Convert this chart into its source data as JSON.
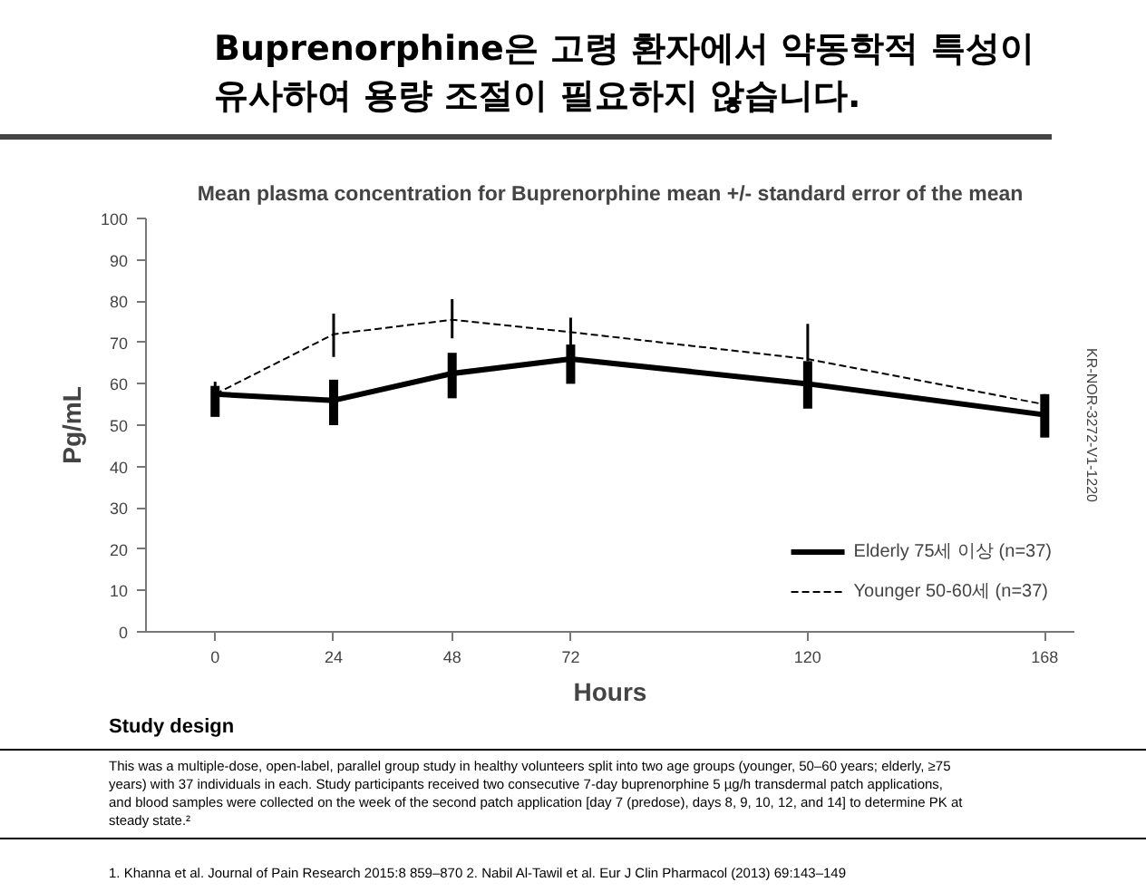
{
  "chart_data": {
    "type": "line",
    "title": "Buprenorphine은 고령 환자에서 약동학적 특성이\n유사하여 용량 조절이 필요하지 않습니다.",
    "subtitle": "Mean plasma concentration for Buprenorphine mean +/- standard error of the mean",
    "xlabel": "Hours",
    "ylabel": "Pg/mL",
    "x": [
      0,
      24,
      48,
      72,
      120,
      168
    ],
    "series": [
      {
        "name": "Elderly 75세 이상 (n=37)",
        "color": "#000000",
        "line_style": "solid",
        "values": [
          57.5,
          56,
          62.5,
          66,
          60,
          52.5
        ],
        "errors": [
          [
            52,
            59.5
          ],
          [
            50,
            61
          ],
          [
            56.5,
            67.5
          ],
          [
            60,
            69.5
          ],
          [
            54,
            65.5
          ],
          [
            47,
            57.5
          ]
        ]
      },
      {
        "name": "Younger 50-60세 (n=37)",
        "color": "#000000",
        "line_style": "dashed",
        "values": [
          57.5,
          72,
          75.5,
          72.5,
          66,
          55
        ],
        "errors": [
          [
            56,
            60.5
          ],
          [
            66.5,
            77
          ],
          [
            71,
            80.5
          ],
          [
            67,
            76
          ],
          [
            65.5,
            74.5
          ],
          [
            52.5,
            57.5
          ]
        ]
      }
    ],
    "xlim": [
      -14,
      174
    ],
    "ylim": [
      0,
      100
    ],
    "xticks": [
      0,
      24,
      48,
      72,
      120,
      168
    ],
    "yticks": [
      0,
      10,
      20,
      30,
      40,
      50,
      60,
      70,
      80,
      90,
      100
    ],
    "grid": false,
    "legend": "bottom right",
    "marker": "none",
    "annotations": [
      "Study design",
      "This was a multiple-dose, open-label, parallel group study in healthy volunteers split into two age groups (younger, 50–60 years; elderly, ≥75 years) with 37 individuals in each. Study participants received two consecutive 7-day buprenorphine 5 µg/h transdermal patch applications, and blood samples were collected on the week of the second patch application [day 7 (predose), days 8, 9, 10, 12, and 14] to determine PK at steady state.²",
      "1. Khanna et al. Journal of Pain Research 2015:8 859–870 2. Nabil Al-Tawil et al. Eur J Clin Pharmacol (2013) 69:143–149",
      "KR-NOR-3272-V1-1220"
    ]
  }
}
